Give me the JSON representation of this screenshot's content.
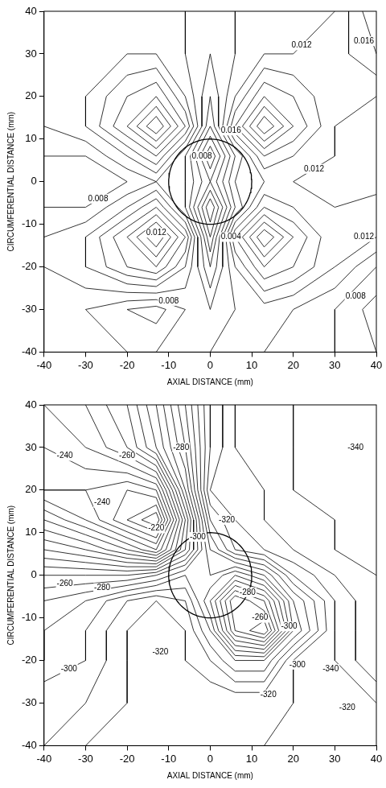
{
  "chart_data": [
    {
      "type": "contour",
      "x_label": "AXIAL DISTANCE (mm)",
      "y_label": "CIRCUMFERENTIAL DISTANCE (mm)",
      "xlim": [
        -40,
        40
      ],
      "ylim": [
        -40,
        40
      ],
      "xticks": [
        -40,
        -30,
        -20,
        -10,
        0,
        10,
        20,
        30,
        40
      ],
      "yticks": [
        -40,
        -30,
        -20,
        -10,
        0,
        10,
        20,
        30,
        40
      ],
      "grid": false,
      "color": "#000000",
      "x": [
        -40,
        -30,
        -20,
        -13,
        -6,
        0,
        6,
        13,
        20,
        30,
        40
      ],
      "y": [
        40,
        30,
        20,
        13,
        6,
        0,
        -6,
        -13,
        -20,
        -30,
        -40
      ],
      "z": [
        [
          0.011,
          0.011,
          0.011,
          0.011,
          0.011,
          0.0105,
          0.011,
          0.011,
          0.011,
          0.012,
          0.015
        ],
        [
          0.011,
          0.0115,
          0.012,
          0.012,
          0.011,
          0.01,
          0.011,
          0.012,
          0.012,
          0.0125,
          0.014
        ],
        [
          0.011,
          0.012,
          0.014,
          0.015,
          0.012,
          0.009,
          0.012,
          0.015,
          0.014,
          0.012,
          0.012
        ],
        [
          0.011,
          0.012,
          0.015,
          0.018,
          0.014,
          0.008,
          0.014,
          0.018,
          0.015,
          0.012,
          0.0115
        ],
        [
          0.01,
          0.01,
          0.012,
          0.014,
          0.01,
          0.005,
          0.01,
          0.014,
          0.013,
          0.012,
          0.0115
        ],
        [
          0.009,
          0.009,
          0.01,
          0.011,
          0.01,
          0.007,
          0.011,
          0.012,
          0.012,
          0.0115,
          0.0115
        ],
        [
          0.01,
          0.01,
          0.012,
          0.014,
          0.01,
          0.004,
          0.01,
          0.014,
          0.013,
          0.012,
          0.0125
        ],
        [
          0.011,
          0.012,
          0.015,
          0.018,
          0.014,
          0.006,
          0.014,
          0.018,
          0.015,
          0.012,
          0.012
        ],
        [
          0.011,
          0.012,
          0.014,
          0.015,
          0.012,
          0.008,
          0.012,
          0.015,
          0.014,
          0.012,
          0.01
        ],
        [
          0.0105,
          0.01,
          0.009,
          0.0085,
          0.01,
          0.01,
          0.011,
          0.0115,
          0.011,
          0.01,
          0.0085
        ],
        [
          0.011,
          0.0105,
          0.01,
          0.01,
          0.0105,
          0.011,
          0.011,
          0.011,
          0.0105,
          0.01,
          0.009
        ]
      ],
      "levels": [
        0.004,
        0.005,
        0.006,
        0.007,
        0.008,
        0.009,
        0.01,
        0.011,
        0.012,
        0.013,
        0.014,
        0.015,
        0.016,
        0.017,
        0.018
      ],
      "hole": {
        "x": 0,
        "y": 0,
        "radius": 10
      },
      "annotations": [
        {
          "x": 22,
          "y": 32,
          "text": "0.012"
        },
        {
          "x": 37,
          "y": 33,
          "text": "0.016"
        },
        {
          "x": -2,
          "y": 6,
          "text": "0.008"
        },
        {
          "x": 5,
          "y": 12,
          "text": "0.016"
        },
        {
          "x": 25,
          "y": 3,
          "text": "0.012"
        },
        {
          "x": -27,
          "y": -4,
          "text": "0.008"
        },
        {
          "x": -13,
          "y": -12,
          "text": "0.012"
        },
        {
          "x": 5,
          "y": -13,
          "text": "0.004"
        },
        {
          "x": 37,
          "y": -13,
          "text": "0.012"
        },
        {
          "x": 35,
          "y": -27,
          "text": "0.008"
        },
        {
          "x": -10,
          "y": -28,
          "text": "0.008"
        }
      ]
    },
    {
      "type": "contour",
      "x_label": "AXIAL DISTANCE (mm)",
      "y_label": "CIRCUMFERENTIAL DISTANCE (mm)",
      "xlim": [
        -40,
        40
      ],
      "ylim": [
        -40,
        40
      ],
      "xticks": [
        -40,
        -30,
        -20,
        -10,
        0,
        10,
        20,
        30,
        40
      ],
      "yticks": [
        -40,
        -30,
        -20,
        -10,
        0,
        10,
        20,
        30,
        40
      ],
      "grid": false,
      "color": "#000000",
      "x": [
        -40,
        -30,
        -20,
        -13,
        -6,
        0,
        6,
        13,
        20,
        30,
        40
      ],
      "y": [
        40,
        30,
        20,
        13,
        6,
        0,
        -6,
        -13,
        -20,
        -30,
        -40
      ],
      "z": [
        [
          -250,
          -255,
          -265,
          -280,
          -300,
          -320,
          -330,
          -335,
          -335,
          -340,
          -340
        ],
        [
          -245,
          -250,
          -260,
          -275,
          -295,
          -320,
          -330,
          -335,
          -335,
          -340,
          -340
        ],
        [
          -240,
          -240,
          -235,
          -240,
          -285,
          -325,
          -330,
          -330,
          -335,
          -340,
          -340
        ],
        [
          -255,
          -245,
          -230,
          -220,
          -270,
          -315,
          -325,
          -330,
          -335,
          -335,
          -340
        ],
        [
          -270,
          -265,
          -255,
          -245,
          -275,
          -305,
          -320,
          -325,
          -330,
          -335,
          -340
        ],
        [
          -285,
          -285,
          -285,
          -290,
          -300,
          -300,
          -290,
          -300,
          -320,
          -330,
          -335
        ],
        [
          -295,
          -300,
          -310,
          -315,
          -310,
          -290,
          -265,
          -275,
          -305,
          -325,
          -335
        ],
        [
          -300,
          -305,
          -315,
          -320,
          -315,
          -300,
          -270,
          -260,
          -300,
          -325,
          -335
        ],
        [
          -300,
          -305,
          -315,
          -320,
          -315,
          -310,
          -300,
          -300,
          -320,
          -325,
          -335
        ],
        [
          -310,
          -310,
          -315,
          -320,
          -320,
          -320,
          -320,
          -320,
          -320,
          -325,
          -325
        ],
        [
          -310,
          -315,
          -320,
          -320,
          -320,
          -320,
          -320,
          -320,
          -325,
          -325,
          -325
        ]
      ],
      "levels": [
        -340,
        -335,
        -330,
        -325,
        -320,
        -315,
        -310,
        -305,
        -300,
        -295,
        -290,
        -285,
        -280,
        -275,
        -270,
        -265,
        -260,
        -255,
        -250,
        -245,
        -240,
        -235,
        -230,
        -225,
        -220
      ],
      "hole": {
        "x": 0,
        "y": 0,
        "radius": 10
      },
      "annotations": [
        {
          "x": -35,
          "y": 28,
          "text": "-240"
        },
        {
          "x": -20,
          "y": 28,
          "text": "-260"
        },
        {
          "x": -7,
          "y": 30,
          "text": "-280"
        },
        {
          "x": -26,
          "y": 17,
          "text": "-240"
        },
        {
          "x": -13,
          "y": 11,
          "text": "-220"
        },
        {
          "x": -3,
          "y": 9,
          "text": "-300"
        },
        {
          "x": 4,
          "y": 13,
          "text": "-320"
        },
        {
          "x": -35,
          "y": -2,
          "text": "-260"
        },
        {
          "x": -26,
          "y": -3,
          "text": "-280"
        },
        {
          "x": -12,
          "y": -18,
          "text": "-320"
        },
        {
          "x": -34,
          "y": -22,
          "text": "-300"
        },
        {
          "x": 9,
          "y": -4,
          "text": "-280"
        },
        {
          "x": 12,
          "y": -10,
          "text": "-260"
        },
        {
          "x": 19,
          "y": -12,
          "text": "-300"
        },
        {
          "x": 21,
          "y": -21,
          "text": "-300"
        },
        {
          "x": 14,
          "y": -28,
          "text": "-320"
        },
        {
          "x": 29,
          "y": -22,
          "text": "-340"
        },
        {
          "x": 33,
          "y": -31,
          "text": "-320"
        },
        {
          "x": 35,
          "y": 30,
          "text": "-340"
        }
      ]
    }
  ]
}
